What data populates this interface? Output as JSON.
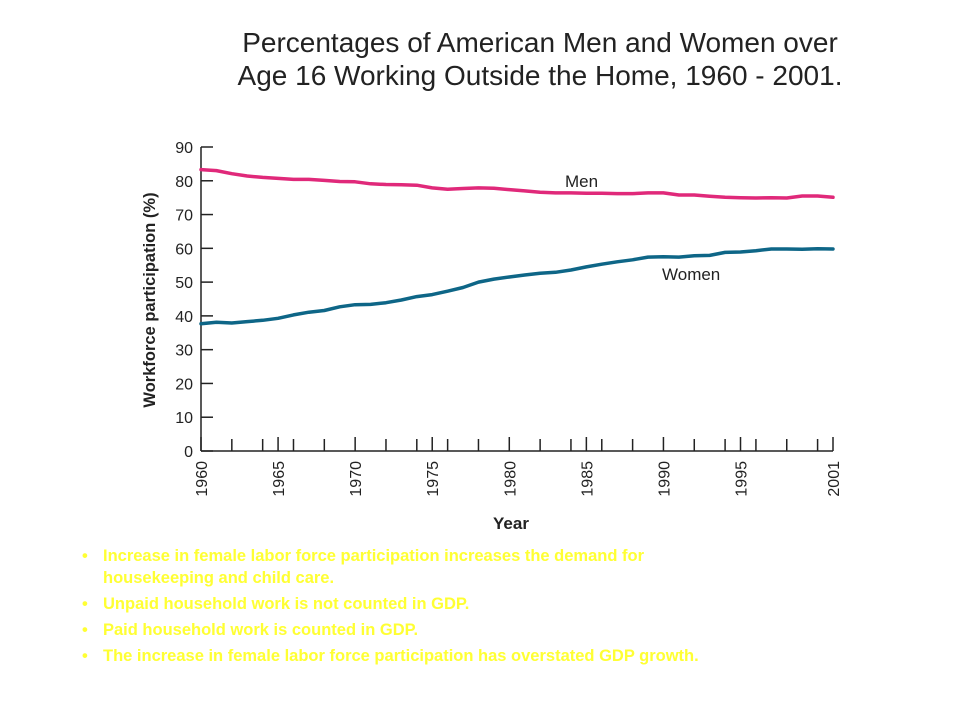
{
  "title": {
    "line1": "Percentages of American Men and Women over",
    "line2": "Age 16 Working Outside the Home, 1960 - 2001."
  },
  "chart_data": {
    "type": "line",
    "title": "",
    "xlabel": "Year",
    "ylabel": "Workforce participation (%)",
    "xlim": [
      1960,
      2001
    ],
    "ylim": [
      0,
      90
    ],
    "x_ticks": [
      "1960",
      "1965",
      "1970",
      "1975",
      "1980",
      "1985",
      "1990",
      "1995",
      "2001"
    ],
    "y_ticks": [
      "0",
      "10",
      "20",
      "30",
      "40",
      "50",
      "60",
      "70",
      "80",
      "90"
    ],
    "grid": false,
    "x": [
      1960,
      1961,
      1962,
      1963,
      1964,
      1965,
      1966,
      1967,
      1968,
      1969,
      1970,
      1971,
      1972,
      1973,
      1974,
      1975,
      1976,
      1977,
      1978,
      1979,
      1980,
      1981,
      1982,
      1983,
      1984,
      1985,
      1986,
      1987,
      1988,
      1989,
      1990,
      1991,
      1992,
      1993,
      1994,
      1995,
      1996,
      1997,
      1998,
      1999,
      2000,
      2001
    ],
    "series": [
      {
        "name": "Men",
        "color": "#e0297a",
        "values": [
          83.3,
          83.0,
          82.1,
          81.4,
          81.0,
          80.7,
          80.4,
          80.4,
          80.1,
          79.8,
          79.7,
          79.1,
          78.9,
          78.8,
          78.7,
          77.9,
          77.5,
          77.7,
          77.9,
          77.8,
          77.4,
          77.0,
          76.6,
          76.4,
          76.4,
          76.3,
          76.3,
          76.2,
          76.2,
          76.4,
          76.4,
          75.8,
          75.8,
          75.4,
          75.1,
          75.0,
          74.9,
          75.0,
          74.9,
          75.5,
          75.5,
          75.1
        ]
      },
      {
        "name": "Women",
        "color": "#0e6687",
        "values": [
          37.7,
          38.1,
          37.9,
          38.3,
          38.7,
          39.3,
          40.3,
          41.1,
          41.6,
          42.7,
          43.3,
          43.4,
          43.9,
          44.7,
          45.7,
          46.3,
          47.3,
          48.4,
          50.0,
          50.9,
          51.5,
          52.1,
          52.6,
          52.9,
          53.6,
          54.5,
          55.3,
          56.0,
          56.6,
          57.4,
          57.5,
          57.4,
          57.8,
          57.9,
          58.8,
          58.9,
          59.3,
          59.8,
          59.8,
          59.7,
          59.9,
          59.8
        ]
      }
    ]
  },
  "bullets": [
    {
      "marker": "•",
      "lines": [
        "Increase in female labor force participation increases the demand for",
        "housekeeping and child care."
      ]
    },
    {
      "marker": "•",
      "lines": [
        "Unpaid household work is not counted in GDP."
      ]
    },
    {
      "marker": "•",
      "lines": [
        "Paid household work is counted in GDP."
      ]
    },
    {
      "marker": "•",
      "lines": [
        "The increase in female labor force participation has overstated GDP growth."
      ]
    }
  ]
}
